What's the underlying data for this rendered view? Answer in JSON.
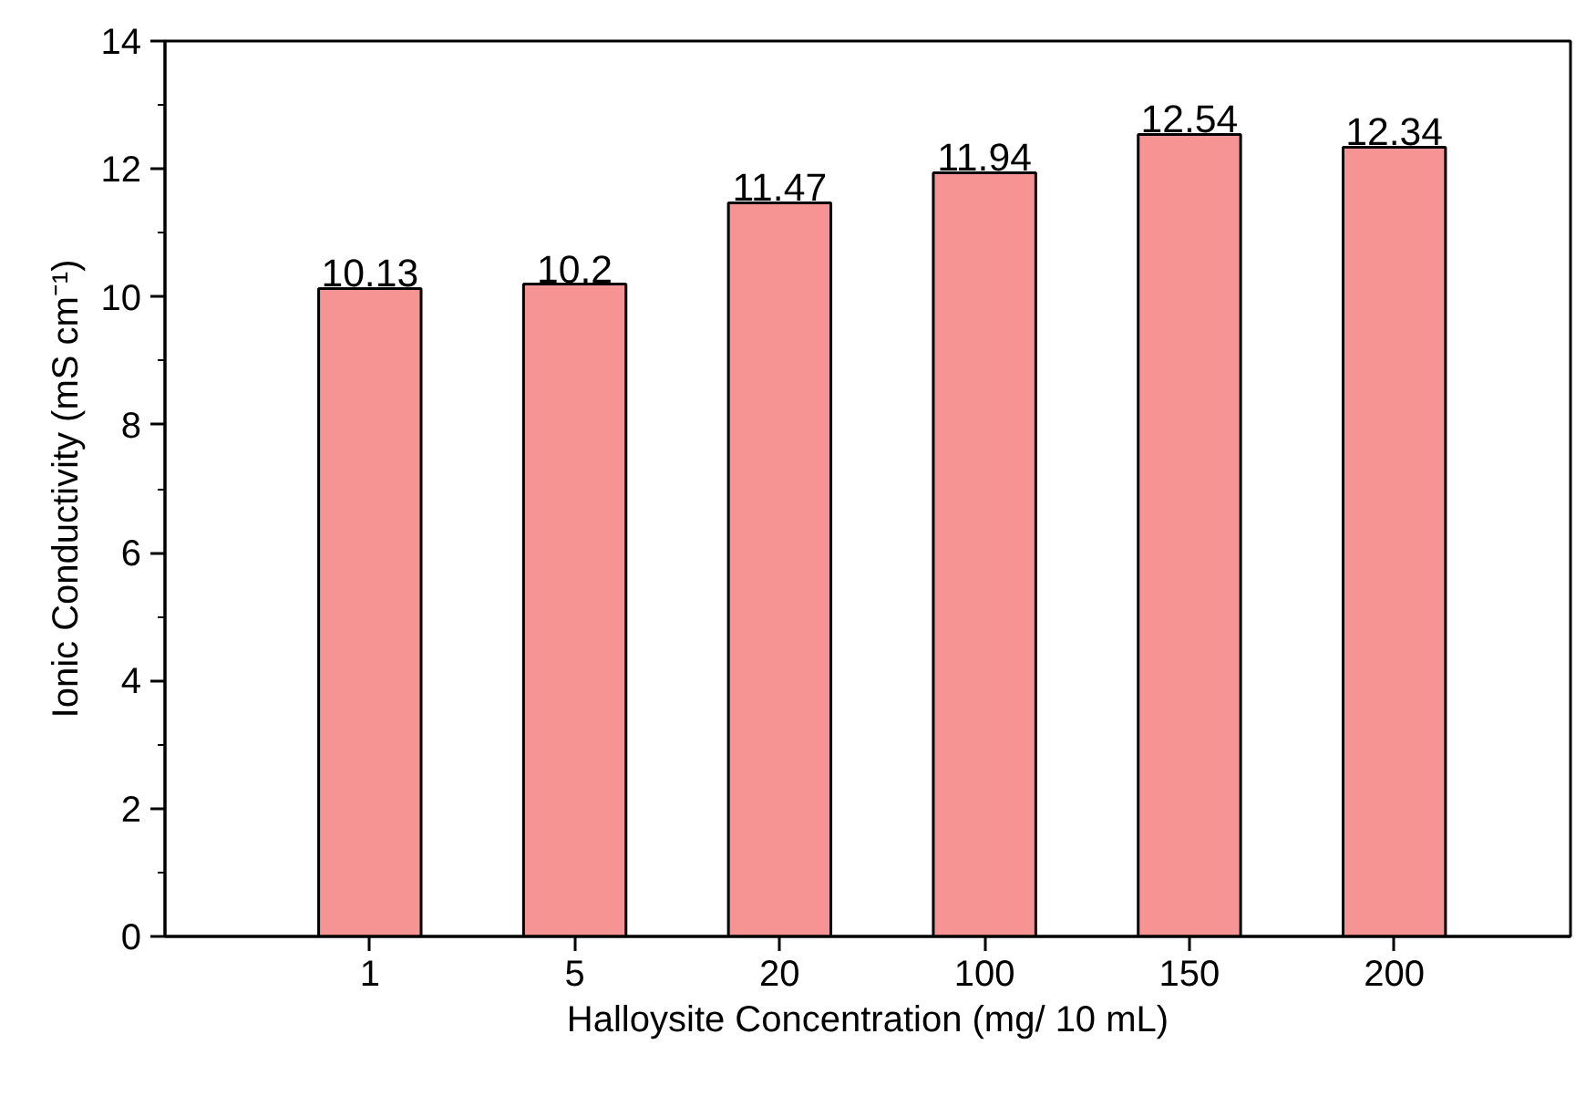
{
  "chart_data": {
    "type": "bar",
    "categories": [
      "1",
      "5",
      "20",
      "100",
      "150",
      "200"
    ],
    "values": [
      10.13,
      10.2,
      11.47,
      11.94,
      12.54,
      12.34
    ],
    "color": "#f69494",
    "xlabel": "Halloysite Concentration (mg/ 10 mL)",
    "ylabel": "Ionic Conductivity (mS cm⁻¹)",
    "ylim": [
      0,
      14
    ],
    "yticks": [
      0,
      2,
      4,
      6,
      8,
      10,
      12,
      14
    ],
    "data_labels": true,
    "grid": false
  }
}
